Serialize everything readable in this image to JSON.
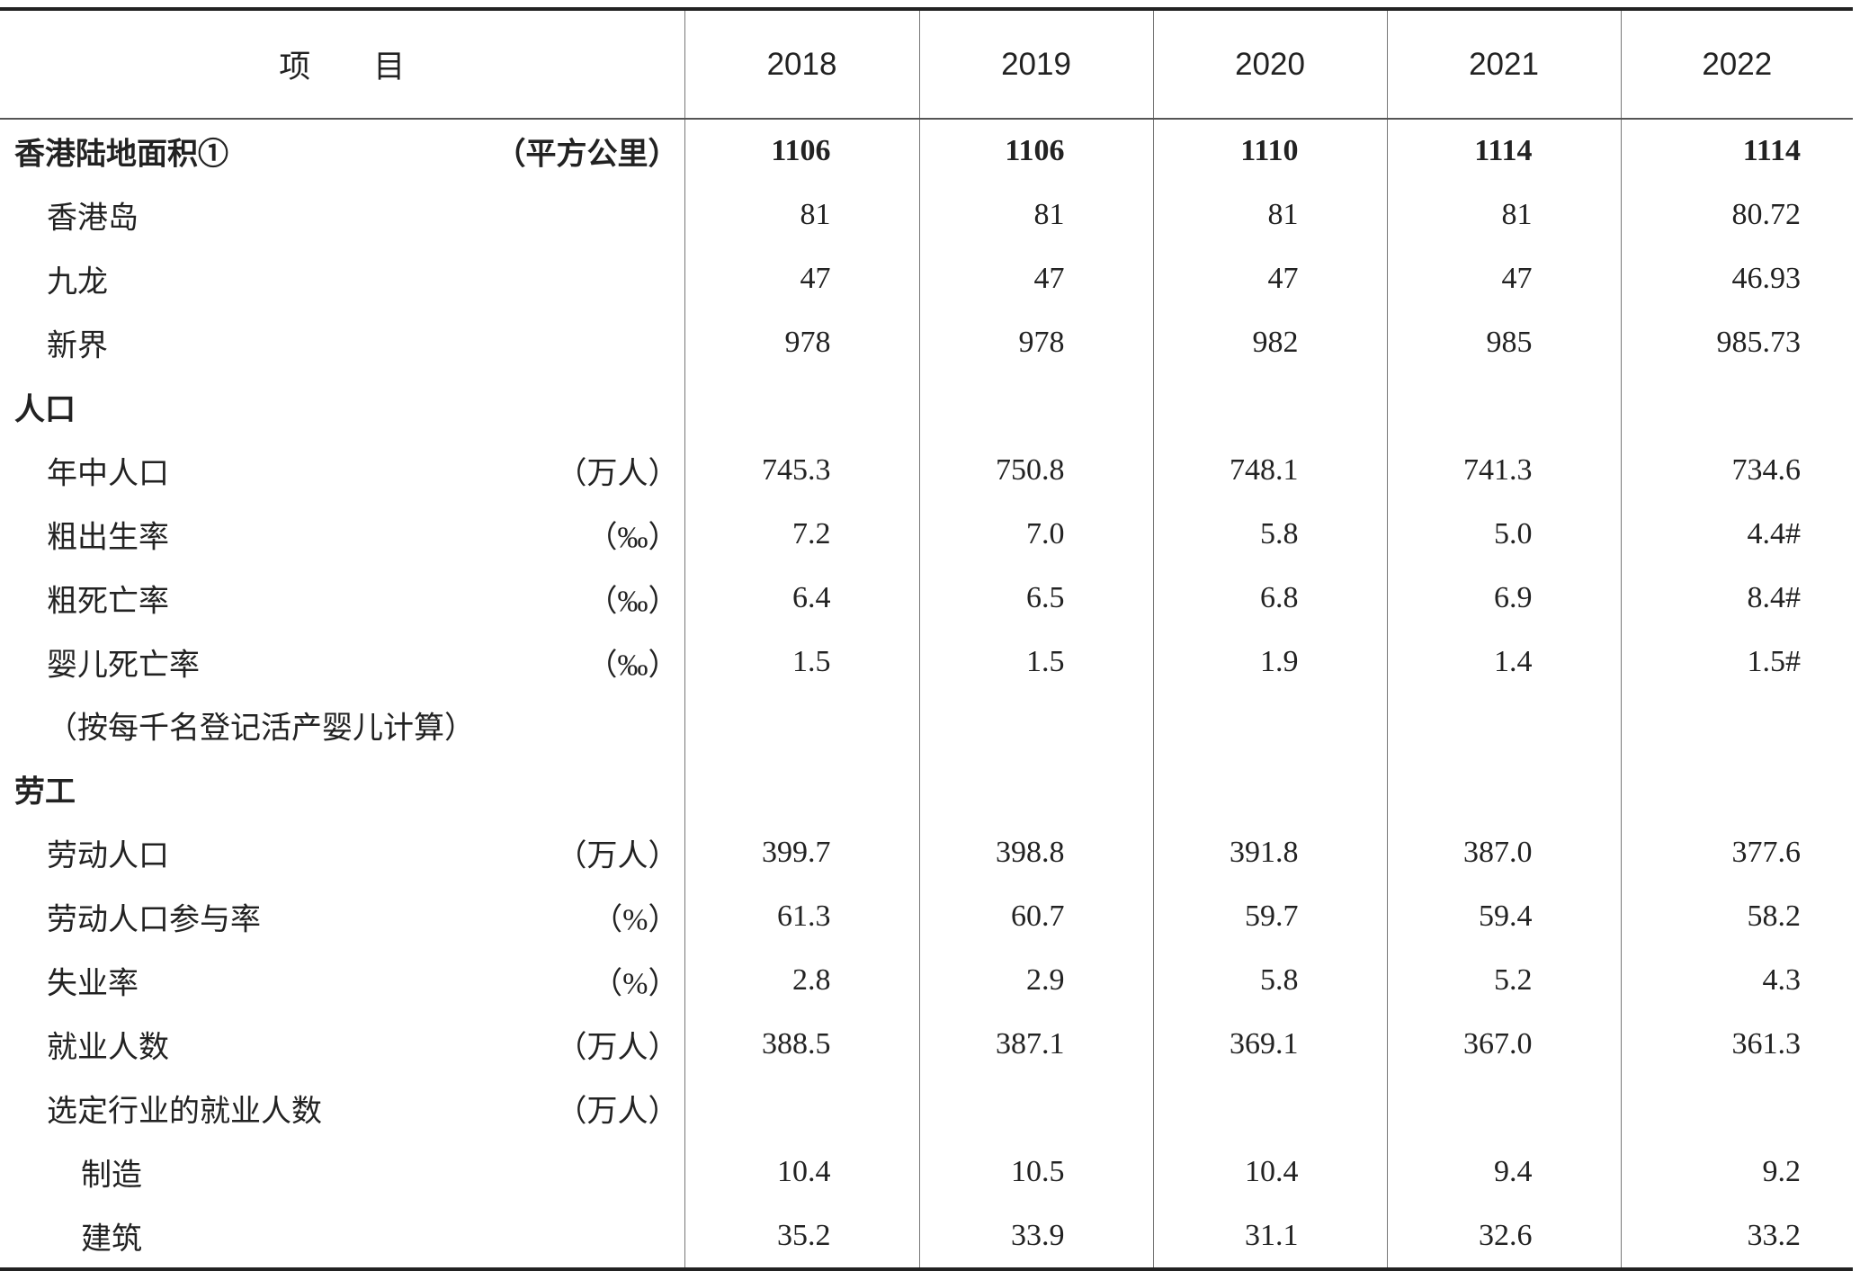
{
  "table": {
    "header": [
      "项　　目",
      "2018",
      "2019",
      "2020",
      "2021",
      "2022"
    ],
    "rows": [
      {
        "label": "香港陆地面积①",
        "unit": "（平方公里）",
        "values": [
          "1106",
          "1106",
          "1110",
          "1114",
          "1114"
        ]
      },
      {
        "label": "香港岛",
        "values": [
          "81",
          "81",
          "81",
          "81",
          "80.72"
        ]
      },
      {
        "label": "九龙",
        "values": [
          "47",
          "47",
          "47",
          "47",
          "46.93"
        ]
      },
      {
        "label": "新界",
        "values": [
          "978",
          "978",
          "982",
          "985",
          "985.73"
        ]
      },
      {
        "label": "人口"
      },
      {
        "label": "年中人口",
        "unit": "（万人）",
        "values": [
          "745.3",
          "750.8",
          "748.1",
          "741.3",
          "734.6"
        ]
      },
      {
        "label": "粗出生率",
        "unit": "（‰）",
        "values": [
          "7.2",
          "7.0",
          "5.8",
          "5.0",
          "4.4#"
        ]
      },
      {
        "label": "粗死亡率",
        "unit": "（‰）",
        "values": [
          "6.4",
          "6.5",
          "6.8",
          "6.9",
          "8.4#"
        ]
      },
      {
        "label": "婴儿死亡率",
        "unit": "（‰）",
        "values": [
          "1.5",
          "1.5",
          "1.9",
          "1.4",
          "1.5#"
        ]
      },
      {
        "label": "（按每千名登记活产婴儿计算）"
      },
      {
        "label": "劳工"
      },
      {
        "label": "劳动人口",
        "unit": "（万人）",
        "values": [
          "399.7",
          "398.8",
          "391.8",
          "387.0",
          "377.6"
        ]
      },
      {
        "label": "劳动人口参与率",
        "unit": "（%）",
        "values": [
          "61.3",
          "60.7",
          "59.7",
          "59.4",
          "58.2"
        ]
      },
      {
        "label": "失业率",
        "unit": "（%）",
        "values": [
          "2.8",
          "2.9",
          "5.8",
          "5.2",
          "4.3"
        ]
      },
      {
        "label": "就业人数",
        "unit": "（万人）",
        "values": [
          "388.5",
          "387.1",
          "369.1",
          "367.0",
          "361.3"
        ]
      },
      {
        "label": "选定行业的就业人数",
        "unit": "（万人）"
      },
      {
        "label": "制造",
        "values": [
          "10.4",
          "10.5",
          "10.4",
          "9.4",
          "9.2"
        ]
      },
      {
        "label": "建筑",
        "values": [
          "35.2",
          "33.9",
          "31.1",
          "32.6",
          "33.2"
        ]
      }
    ]
  }
}
